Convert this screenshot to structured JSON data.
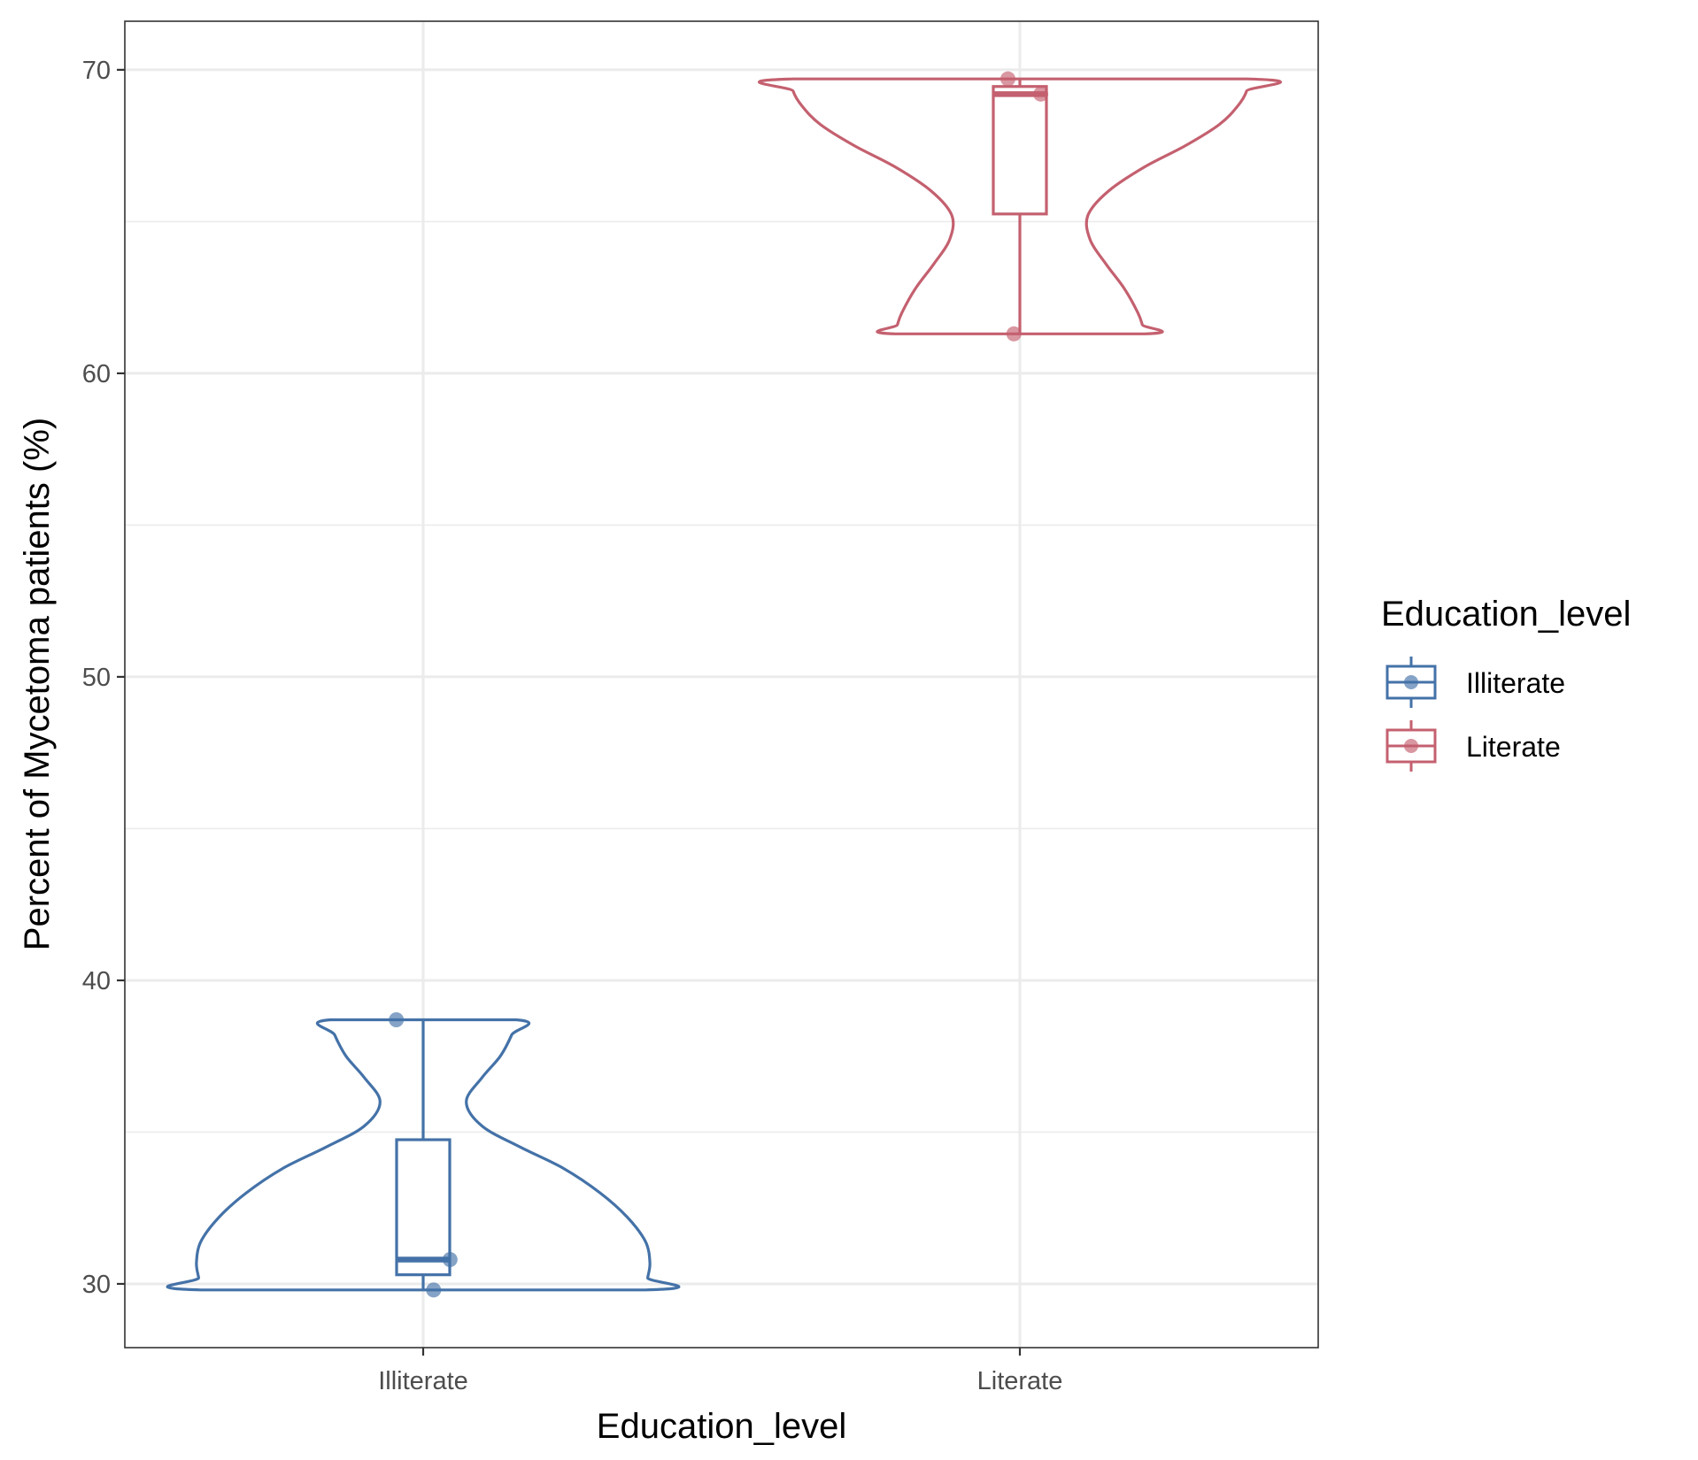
{
  "chart_data": {
    "type": "violin",
    "xlabel": "Education_level",
    "ylabel": "Percent of Mycetoma patients (%)",
    "ylim": [
      27.9,
      71.6
    ],
    "yticks": [
      30,
      40,
      50,
      60,
      70
    ],
    "grid": true,
    "categories": [
      "Illiterate",
      "Literate"
    ],
    "legend": {
      "title": "Education_level",
      "placement": "right",
      "entries": [
        "Illiterate",
        "Literate"
      ]
    },
    "series": [
      {
        "name": "Illiterate",
        "color": "#4472a8",
        "points": [
          38.7,
          30.8,
          29.8
        ],
        "box": {
          "min": 29.8,
          "q1": 30.3,
          "median": 30.8,
          "q3": 34.75,
          "max": 38.7
        },
        "violin_profile": [
          [
            38.7,
            0.41
          ],
          [
            38.2,
            0.39
          ],
          [
            37.5,
            0.34
          ],
          [
            36.8,
            0.26
          ],
          [
            36.0,
            0.19
          ],
          [
            35.2,
            0.26
          ],
          [
            34.5,
            0.43
          ],
          [
            33.8,
            0.62
          ],
          [
            33.0,
            0.78
          ],
          [
            32.2,
            0.9
          ],
          [
            31.4,
            0.98
          ],
          [
            30.7,
            1.0
          ],
          [
            30.2,
            0.99
          ],
          [
            29.8,
            0.98
          ]
        ]
      },
      {
        "name": "Literate",
        "color": "#c4606f",
        "points": [
          69.7,
          69.2,
          61.3
        ],
        "box": {
          "min": 61.3,
          "q1": 65.25,
          "median": 69.2,
          "q3": 69.45,
          "max": 69.7
        },
        "violin_profile": [
          [
            69.7,
            1.0
          ],
          [
            69.3,
            1.0
          ],
          [
            68.8,
            0.96
          ],
          [
            68.2,
            0.88
          ],
          [
            67.5,
            0.73
          ],
          [
            66.8,
            0.55
          ],
          [
            66.0,
            0.39
          ],
          [
            65.2,
            0.3
          ],
          [
            64.4,
            0.31
          ],
          [
            63.6,
            0.38
          ],
          [
            62.8,
            0.46
          ],
          [
            62.0,
            0.52
          ],
          [
            61.6,
            0.54
          ],
          [
            61.3,
            0.55
          ]
        ]
      }
    ]
  }
}
